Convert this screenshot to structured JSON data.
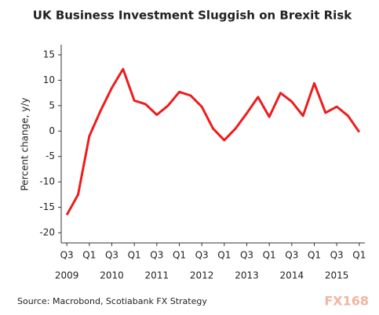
{
  "chart_data": {
    "type": "line",
    "title": "UK Business Investment Sluggish on Brexit Risk",
    "y_label": "Percent change, y/y",
    "source": "Source: Macrobond, Scotiabank FX Strategy",
    "watermark": "FX168",
    "categories": [
      "Q3",
      null,
      "Q1",
      null,
      "Q3",
      null,
      "Q1",
      null,
      "Q3",
      null,
      "Q1",
      null,
      "Q3",
      null,
      "Q1",
      null,
      "Q3",
      null,
      "Q1",
      null,
      "Q3",
      null,
      "Q1",
      null,
      "Q3",
      null,
      "Q1"
    ],
    "year_labels": [
      "2009",
      "2010",
      "2011",
      "2012",
      "2013",
      "2014",
      "2015"
    ],
    "series": [
      {
        "name": "UK business investment",
        "color": "#ee1c1c",
        "values": [
          -16.5,
          -12.5,
          -1,
          4,
          8.5,
          12.2,
          6,
          5.3,
          3.2,
          5,
          7.7,
          7,
          4.8,
          0.5,
          -1.8,
          0.5,
          3.5,
          6.7,
          2.8,
          7.5,
          5.8,
          3,
          9.4,
          3.6,
          4.8,
          3,
          -0.2
        ]
      }
    ],
    "ylim": [
      -22,
      17
    ],
    "yticks": [
      -20,
      -15,
      -10,
      -5,
      0,
      5,
      10,
      15
    ],
    "grid": false
  }
}
